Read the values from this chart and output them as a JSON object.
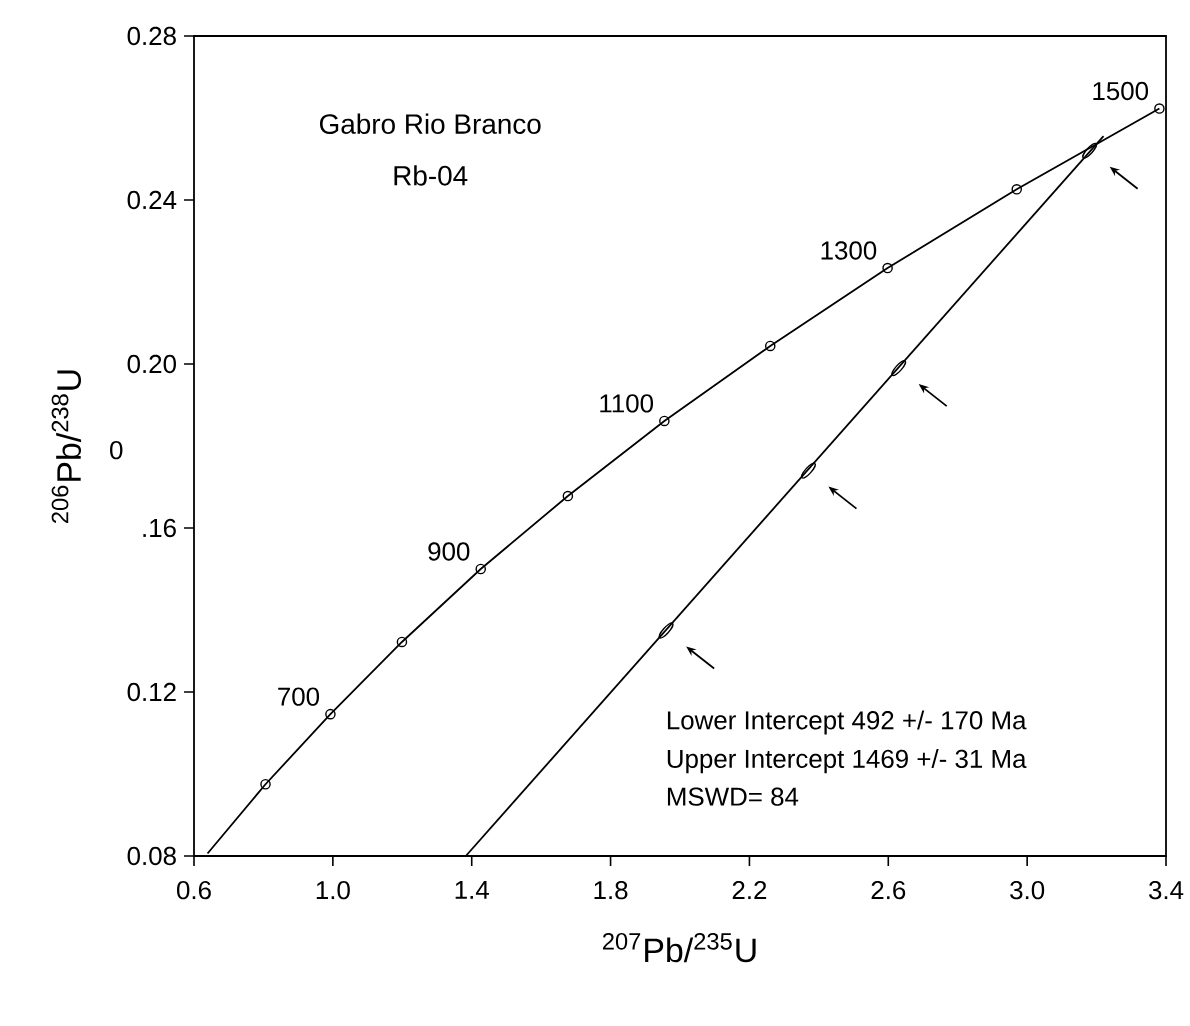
{
  "chart_data": {
    "type": "line",
    "title": "Gabro  Rio Branco",
    "subtitle": "Rb-04",
    "xlabel": "$^{207}$Pb/$^{235}$U",
    "ylabel": "$^{206}$Pb/$^{238}$U",
    "xlim": [
      0.6,
      3.4
    ],
    "ylim": [
      0.08,
      0.28
    ],
    "xticks": [
      0.6,
      {
        "value": 1.0,
        "label": "1.0"
      },
      1.4,
      1.8,
      2.2,
      2.6,
      {
        "value": 3.0,
        "label": "3.0"
      },
      3.4
    ],
    "yticks": [
      0.08,
      0.12,
      {
        "value": 0.16,
        "label": ".16"
      },
      {
        "value": 0.2,
        "label": "0.20"
      },
      0.24,
      0.28
    ],
    "grid": false,
    "series": [
      {
        "color": "#000000",
        "marker": "none",
        "line_style": "solid",
        "x": [
          0.639,
          0.806,
          0.993,
          1.199,
          1.426,
          1.677,
          1.955,
          2.26,
          2.598,
          2.97,
          3.381
        ],
        "values": [
          0.0806,
          0.0975,
          0.1146,
          0.1322,
          0.15,
          0.1678,
          0.1861,
          0.2044,
          0.2234,
          0.2426,
          0.2623
        ]
      },
      {
        "type": "scatter",
        "color": "#000000",
        "marker": "circle",
        "x": [
          0.806,
          0.993,
          1.199,
          1.426,
          1.677,
          1.955,
          2.26,
          2.598,
          2.97,
          3.381
        ],
        "values": [
          0.0975,
          0.1146,
          0.1322,
          0.15,
          0.1678,
          0.1861,
          0.2044,
          0.2234,
          0.2426,
          0.2623
        ]
      },
      {
        "color": "#000000",
        "marker": "none",
        "line_style": "solid",
        "x": [
          1.383,
          3.22
        ],
        "values": [
          0.08,
          0.2556
        ]
      },
      {
        "type": "scatter",
        "color": "#000000",
        "x": [
          1.96,
          2.37,
          2.63,
          3.18
        ],
        "values": [
          0.135,
          0.174,
          0.199,
          0.252
        ]
      }
    ],
    "annotations": [
      "Lower Intercept 492 +/- 170 Ma",
      "Upper Intercept 1469 +/- 31 Ma",
      "MSWD= 84",
      "0",
      {
        "text": "700",
        "x": 0.993,
        "y": 0.1146
      },
      {
        "text": "900",
        "x": 1.426,
        "y": 0.15
      },
      {
        "text": "1100",
        "x": 1.955,
        "y": 0.1861
      },
      {
        "text": "1300",
        "x": 2.598,
        "y": 0.2234
      },
      {
        "text": "1500",
        "x": 3.381,
        "y": 0.2623
      }
    ]
  }
}
